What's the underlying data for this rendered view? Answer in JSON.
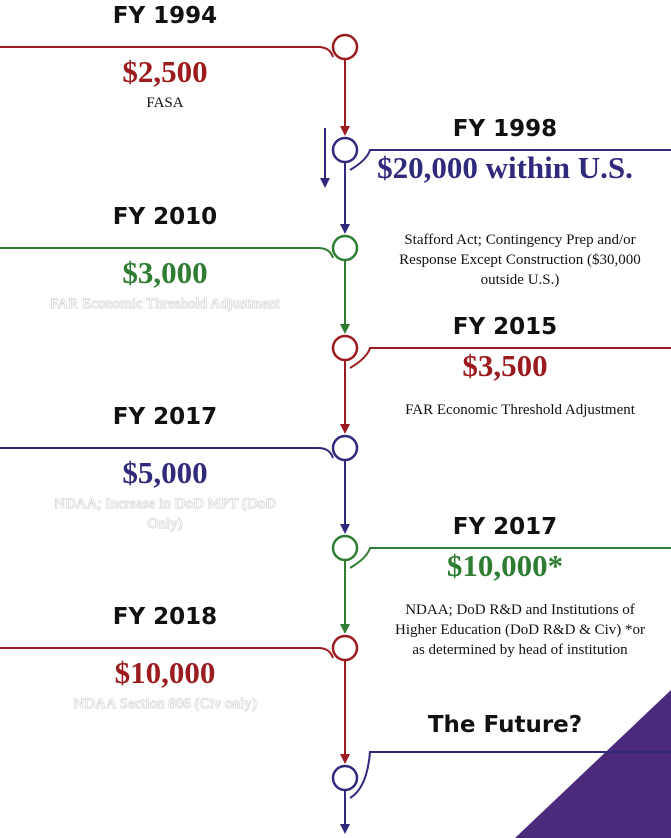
{
  "timeline": [
    {
      "year": "FY 1994",
      "amount": "$2,500",
      "description": "FASA",
      "side": "left",
      "color": "#9b1b1f"
    },
    {
      "year": "FY 1998",
      "amount": "$20,000 within U.S.",
      "description": "Stafford Act; Contingency Prep and/or Response Except Construction ($30,000 outside U.S.)",
      "side": "right",
      "color": "#2f2a7c"
    },
    {
      "year": "FY 2010",
      "amount": "$3,000",
      "description": "FAR Economic Threshold Adjustment",
      "side": "left",
      "color": "#2e7d32",
      "description_color": "#ffffff"
    },
    {
      "year": "FY 2015",
      "amount": "$3,500",
      "description": "FAR Economic Threshold Adjustment",
      "side": "right",
      "color": "#9b1b1f"
    },
    {
      "year": "FY 2017",
      "amount": "$5,000",
      "description": "NDAA; Increase in DoD MPT (DoD Only)",
      "side": "left",
      "color": "#2f2a7c",
      "description_color": "#ffffff"
    },
    {
      "year": "FY 2017",
      "amount": "$10,000*",
      "description": "NDAA; DoD R&D and Institutions of Higher Education (DoD R&D & Civ) *or as determined by head of institution",
      "side": "right",
      "color": "#2e7d32"
    },
    {
      "year": "FY 2018",
      "amount": "$10,000",
      "description": "NDAA Section 806 (Civ only)",
      "side": "left",
      "color": "#9b1b1f",
      "description_color": "#ffffff"
    },
    {
      "year": "The Future?",
      "side": "right",
      "color": "#2f2a7c"
    }
  ]
}
